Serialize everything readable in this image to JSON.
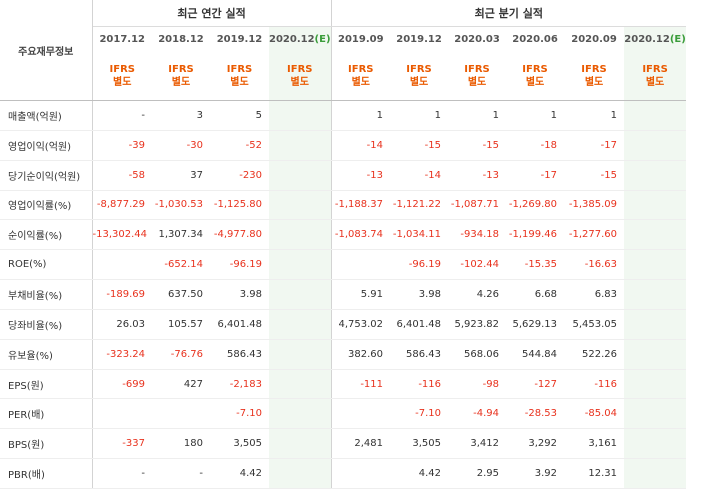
{
  "header": {
    "corner": "주요재무정보",
    "annual_title": "최근 연간 실적",
    "quarter_title": "최근 분기 실적",
    "annual_periods": [
      "2017.12",
      "2018.12",
      "2019.12",
      "2020.12"
    ],
    "quarter_periods": [
      "2019.09",
      "2019.12",
      "2020.03",
      "2020.06",
      "2020.09",
      "2020.12"
    ],
    "estimate_mark": "(E)",
    "ifrs_line1": "IFRS",
    "ifrs_line2": "별도"
  },
  "rows": [
    {
      "label": "매출액(억원)",
      "values": [
        "-",
        "3",
        "5",
        "",
        "1",
        "1",
        "1",
        "1",
        "1",
        ""
      ]
    },
    {
      "label": "영업이익(억원)",
      "values": [
        "-39",
        "-30",
        "-52",
        "",
        "-14",
        "-15",
        "-15",
        "-18",
        "-17",
        ""
      ]
    },
    {
      "label": "당기순이익(억원)",
      "values": [
        "-58",
        "37",
        "-230",
        "",
        "-13",
        "-14",
        "-13",
        "-17",
        "-15",
        ""
      ]
    },
    {
      "label": "영업이익률(%)",
      "values": [
        "-8,877.29",
        "-1,030.53",
        "-1,125.80",
        "",
        "-1,188.37",
        "-1,121.22",
        "-1,087.71",
        "-1,269.80",
        "-1,385.09",
        ""
      ]
    },
    {
      "label": "순이익률(%)",
      "values": [
        "-13,302.44",
        "1,307.34",
        "-4,977.80",
        "",
        "-1,083.74",
        "-1,034.11",
        "-934.18",
        "-1,199.46",
        "-1,277.60",
        ""
      ]
    },
    {
      "label": "ROE(%)",
      "values": [
        "",
        "-652.14",
        "-96.19",
        "",
        "",
        "-96.19",
        "-102.44",
        "-15.35",
        "-16.63",
        ""
      ]
    },
    {
      "label": "부채비율(%)",
      "values": [
        "-189.69",
        "637.50",
        "3.98",
        "",
        "5.91",
        "3.98",
        "4.26",
        "6.68",
        "6.83",
        ""
      ]
    },
    {
      "label": "당좌비율(%)",
      "values": [
        "26.03",
        "105.57",
        "6,401.48",
        "",
        "4,753.02",
        "6,401.48",
        "5,923.82",
        "5,629.13",
        "5,453.05",
        ""
      ]
    },
    {
      "label": "유보율(%)",
      "values": [
        "-323.24",
        "-76.76",
        "586.43",
        "",
        "382.60",
        "586.43",
        "568.06",
        "544.84",
        "522.26",
        ""
      ]
    },
    {
      "label": "EPS(원)",
      "values": [
        "-699",
        "427",
        "-2,183",
        "",
        "-111",
        "-116",
        "-98",
        "-127",
        "-116",
        ""
      ]
    },
    {
      "label": "PER(배)",
      "values": [
        "",
        "",
        "-7.10",
        "",
        "",
        "-7.10",
        "-4.94",
        "-28.53",
        "-85.04",
        ""
      ]
    },
    {
      "label": "BPS(원)",
      "values": [
        "-337",
        "180",
        "3,505",
        "",
        "2,481",
        "3,505",
        "3,412",
        "3,292",
        "3,161",
        ""
      ]
    },
    {
      "label": "PBR(배)",
      "values": [
        "-",
        "-",
        "4.42",
        "",
        "",
        "4.42",
        "2.95",
        "3.92",
        "12.31",
        ""
      ]
    }
  ]
}
